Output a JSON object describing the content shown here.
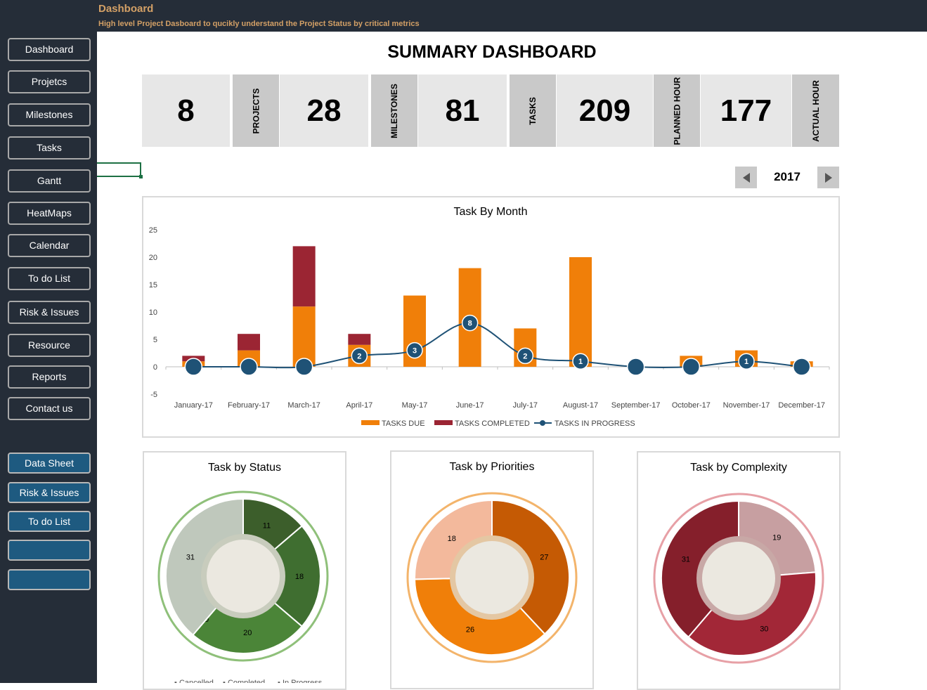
{
  "header": {
    "title": "Dashboard",
    "subtitle": "High level Project Dasboard to qucikly understand the Project Status by critical metrics"
  },
  "sidebar": {
    "items": [
      {
        "label": "Dashboard"
      },
      {
        "label": "Projetcs"
      },
      {
        "label": "Milestones"
      },
      {
        "label": "Tasks"
      },
      {
        "label": "Gantt"
      },
      {
        "label": "HeatMaps"
      },
      {
        "label": "Calendar"
      },
      {
        "label": "To do List"
      },
      {
        "label": "Risk & Issues"
      },
      {
        "label": "Resource"
      },
      {
        "label": "Reports"
      },
      {
        "label": "Contact us"
      }
    ],
    "data_items": [
      {
        "label": "Data Sheet"
      },
      {
        "label": "Risk & Issues"
      },
      {
        "label": "To do List"
      },
      {
        "label": ""
      },
      {
        "label": ""
      }
    ]
  },
  "summary": {
    "title": "SUMMARY DASHBOARD",
    "kpis": [
      {
        "value": "8",
        "label": "PROJECTS"
      },
      {
        "value": "28",
        "label": "MILESTONES"
      },
      {
        "value": "81",
        "label": "TASKS"
      },
      {
        "value": "209",
        "label": "PLANNED HOUR"
      },
      {
        "value": "177",
        "label": "ACTUAL HOUR"
      }
    ]
  },
  "year_selector": {
    "year": "2017",
    "prev_icon": "triangle-left-icon",
    "next_icon": "triangle-right-icon"
  },
  "colors": {
    "sidebar_bg": "#252d38",
    "accent_text": "#d3a066",
    "button_blue": "#1e5a80",
    "tasks_due": "#f07f09",
    "tasks_completed": "#9b2533",
    "in_progress": "#1f5276"
  },
  "chart_data": [
    {
      "type": "bar",
      "title": "Task By Month",
      "categories": [
        "January-17",
        "February-17",
        "March-17",
        "April-17",
        "May-17",
        "June-17",
        "July-17",
        "August-17",
        "September-17",
        "October-17",
        "November-17",
        "December-17"
      ],
      "series": [
        {
          "name": "TASKS DUE",
          "type": "bar",
          "stacked": true,
          "color": "#f07f09",
          "values": [
            1,
            3,
            11,
            4,
            13,
            18,
            7,
            20,
            0,
            2,
            3,
            1
          ]
        },
        {
          "name": "TASKS COMPLETED",
          "type": "bar",
          "stacked": true,
          "color": "#9b2533",
          "values": [
            1,
            3,
            11,
            2,
            0,
            0,
            0,
            0,
            0,
            0,
            0,
            0
          ]
        },
        {
          "name": "TASKS IN PROGRESS",
          "type": "line",
          "color": "#1f5276",
          "values": [
            0,
            0,
            0,
            2,
            3,
            8,
            2,
            1,
            0,
            0,
            1,
            0
          ]
        }
      ],
      "ylim": [
        -5,
        25
      ],
      "yticks": [
        -5,
        0,
        5,
        10,
        15,
        20,
        25
      ],
      "legend": "bottom",
      "grid": false
    },
    {
      "type": "pie",
      "title": "Task by Status",
      "slices": [
        {
          "label": "",
          "value": 11,
          "color": "#3c5e2b"
        },
        {
          "label": "",
          "value": 18,
          "color": "#3f6e30"
        },
        {
          "label": "",
          "value": 20,
          "color": "#4b8538"
        },
        {
          "label": "",
          "value": 0,
          "color": "#7b9f6a"
        },
        {
          "label": "",
          "value": 31,
          "color": "#bfc8bc"
        }
      ],
      "legend_labels": [
        "Cancelled",
        "Completed",
        "In Progress"
      ],
      "ring_color": "#8fc07a",
      "inner_ring_color": "#c8ccbd"
    },
    {
      "type": "pie",
      "title": "Task by Priorities",
      "slices": [
        {
          "label": "",
          "value": 27,
          "color": "#c55a04"
        },
        {
          "label": "",
          "value": 26,
          "color": "#f07f09"
        },
        {
          "label": "",
          "value": 18,
          "color": "#f3b99c"
        }
      ],
      "ring_color": "#f3b46b",
      "inner_ring_color": "#e4c7a3"
    },
    {
      "type": "pie",
      "title": "Task by Complexity",
      "slices": [
        {
          "label": "",
          "value": 19,
          "color": "#c79fa1"
        },
        {
          "label": "",
          "value": 30,
          "color": "#a22737"
        },
        {
          "label": "",
          "value": 31,
          "color": "#851f2b"
        }
      ],
      "ring_color": "#e7a0a6",
      "inner_ring_color": "#c8a8a6"
    }
  ]
}
